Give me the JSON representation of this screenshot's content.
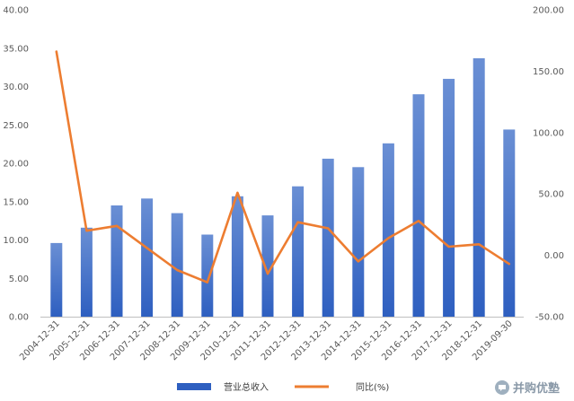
{
  "chart_data": {
    "type": "bar",
    "categories": [
      "2004-12-31",
      "2005-12-31",
      "2006-12-31",
      "2007-12-31",
      "2008-12-31",
      "2009-12-31",
      "2010-12-31",
      "2011-12-31",
      "2012-12-31",
      "2013-12-31",
      "2014-12-31",
      "2015-12-31",
      "2016-12-31",
      "2017-12-31",
      "2018-12-31",
      "2019-09-30"
    ],
    "series": [
      {
        "name": "营业总收入",
        "type": "bar",
        "axis": "left",
        "values": [
          9.6,
          11.6,
          14.5,
          15.4,
          13.5,
          10.7,
          15.7,
          13.2,
          17.0,
          20.6,
          19.5,
          22.6,
          29.0,
          31.0,
          33.7,
          24.4
        ]
      },
      {
        "name": "同比(%)",
        "type": "line",
        "axis": "right",
        "values": [
          166,
          20,
          24,
          6,
          -12,
          -22,
          51,
          -15,
          27,
          22,
          -5,
          14,
          28,
          7,
          9,
          -7
        ]
      }
    ],
    "y_left": {
      "min": 0,
      "max": 40,
      "step": 5,
      "ticks": [
        "0.00",
        "5.00",
        "10.00",
        "15.00",
        "20.00",
        "25.00",
        "30.00",
        "35.00",
        "40.00"
      ]
    },
    "y_right": {
      "min": -50,
      "max": 200,
      "step": 50,
      "ticks": [
        "-50.00",
        "0.00",
        "50.00",
        "100.00",
        "150.00",
        "200.00"
      ]
    },
    "grid": false,
    "legend_position": "bottom",
    "colors": {
      "bar_top": "#6a8fd4",
      "bar_bottom": "#2e5fc0",
      "line": "#ed7d31",
      "axis": "#bfbfbf"
    }
  },
  "watermark": {
    "text": "并购优塾",
    "icon": "chat-bubble-icon"
  }
}
